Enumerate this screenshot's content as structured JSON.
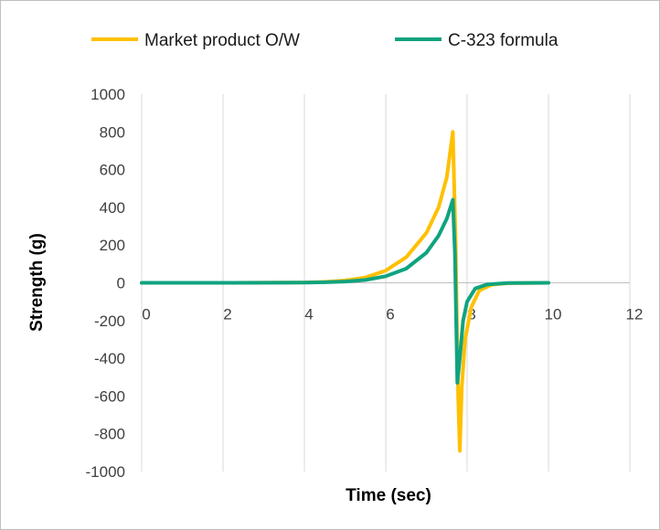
{
  "chart_data": {
    "type": "line",
    "title": "",
    "xlabel": "Time (sec)",
    "ylabel": "Strength (g)",
    "xlim": [
      0,
      12
    ],
    "ylim": [
      -1000,
      1000
    ],
    "x_ticks": [
      0,
      2,
      4,
      6,
      8,
      10,
      12
    ],
    "y_ticks": [
      1000,
      800,
      600,
      400,
      200,
      0,
      -200,
      -400,
      -600,
      -800,
      -1000
    ],
    "grid": "vertical",
    "legend_position": "top",
    "series": [
      {
        "name": "Market product O/W",
        "color": "#FFC000",
        "points": [
          [
            0,
            0
          ],
          [
            2,
            0
          ],
          [
            4,
            2
          ],
          [
            4.5,
            5
          ],
          [
            5,
            12
          ],
          [
            5.5,
            28
          ],
          [
            6,
            65
          ],
          [
            6.5,
            135
          ],
          [
            7,
            265
          ],
          [
            7.3,
            400
          ],
          [
            7.5,
            560
          ],
          [
            7.65,
            800
          ],
          [
            7.72,
            200
          ],
          [
            7.78,
            -600
          ],
          [
            7.82,
            -890
          ],
          [
            7.87,
            -550
          ],
          [
            7.95,
            -300
          ],
          [
            8.1,
            -130
          ],
          [
            8.3,
            -40
          ],
          [
            8.6,
            -10
          ],
          [
            9,
            -2
          ],
          [
            10,
            0
          ]
        ]
      },
      {
        "name": "C-323 formula",
        "color": "#10A37F",
        "points": [
          [
            0,
            0
          ],
          [
            2,
            0
          ],
          [
            4,
            1
          ],
          [
            4.5,
            3
          ],
          [
            5,
            7
          ],
          [
            5.5,
            15
          ],
          [
            6,
            35
          ],
          [
            6.5,
            75
          ],
          [
            7,
            160
          ],
          [
            7.3,
            250
          ],
          [
            7.5,
            340
          ],
          [
            7.65,
            440
          ],
          [
            7.7,
            150
          ],
          [
            7.76,
            -530
          ],
          [
            7.82,
            -400
          ],
          [
            7.9,
            -200
          ],
          [
            8.0,
            -100
          ],
          [
            8.2,
            -30
          ],
          [
            8.5,
            -8
          ],
          [
            9,
            -1
          ],
          [
            10,
            0
          ]
        ]
      }
    ]
  }
}
